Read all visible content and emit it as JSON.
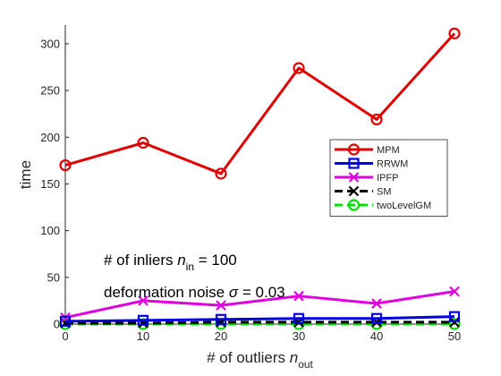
{
  "chart_data": {
    "type": "line",
    "xlabel": "# of outliers",
    "xlabel_sub": "out",
    "xlabel_var": "n",
    "ylabel": "time",
    "x": [
      0,
      10,
      20,
      30,
      40,
      50
    ],
    "xlim": [
      0,
      50
    ],
    "ylim": [
      0,
      320
    ],
    "xticks": [
      0,
      10,
      20,
      30,
      40,
      50
    ],
    "yticks": [
      0,
      50,
      100,
      150,
      200,
      250,
      300
    ],
    "grid": false,
    "legend_position": "right-middle",
    "series": [
      {
        "name": "MPM",
        "color": "#e00000",
        "marker": "circle",
        "values": [
          170,
          194,
          161,
          274,
          219,
          311
        ]
      },
      {
        "name": "RRWM",
        "color": "#0000e0",
        "marker": "square",
        "values": [
          3,
          4,
          5,
          6,
          6,
          8
        ]
      },
      {
        "name": "IPFP",
        "color": "#e000e0",
        "marker": "x",
        "values": [
          7,
          25,
          20,
          30,
          22,
          35
        ]
      },
      {
        "name": "SM",
        "color": "#000000",
        "marker": "x",
        "dashed": true,
        "values": [
          1,
          1,
          2,
          2,
          2,
          2
        ]
      },
      {
        "name": "twoLevelGM",
        "color": "#00e000",
        "marker": "circle",
        "dashed": true,
        "values": [
          0,
          0,
          0,
          0,
          0,
          0
        ]
      }
    ],
    "annotations": [
      {
        "prefix": "# of inliers ",
        "var": "n",
        "sub": "in",
        "suffix": " = 100"
      },
      {
        "prefix": "deformation noise ",
        "var": "σ",
        "sub": "",
        "suffix": " = 0.03"
      }
    ]
  }
}
